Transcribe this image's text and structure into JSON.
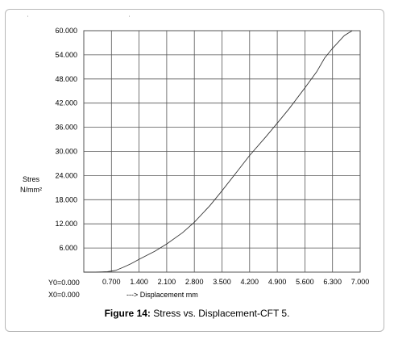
{
  "chart_data": {
    "type": "line",
    "ylabel_line1": "Stres",
    "ylabel_line2": "N/mm²",
    "xlabel": "---> Displacement mm",
    "origin_y": "Y0=0.000",
    "origin_x": "X0=0.000",
    "y_ticks": [
      "6.000",
      "12.000",
      "18.000",
      "24.000",
      "30.000",
      "36.000",
      "42.000",
      "48.000",
      "54.000",
      "60.000"
    ],
    "x_ticks": [
      "0.700",
      "1.400",
      "2.100",
      "2.800",
      "3.500",
      "4.200",
      "4.900",
      "5.600",
      "6.300",
      "7.000"
    ],
    "xlim": [
      0,
      7.0
    ],
    "ylim": [
      0,
      60
    ],
    "grid": true,
    "series": [
      {
        "x": [
          0,
          0.3,
          0.6,
          0.8,
          1.0,
          1.2,
          1.4,
          1.8,
          2.1,
          2.5,
          2.8,
          3.2,
          3.5,
          3.9,
          4.2,
          4.6,
          4.9,
          5.2,
          5.6,
          5.9,
          6.1,
          6.3,
          6.6,
          6.8
        ],
        "y": [
          0,
          0,
          0.1,
          0.4,
          1.2,
          2.1,
          3.2,
          5.2,
          7.0,
          9.8,
          12.4,
          16.6,
          20.2,
          25.2,
          29.0,
          33.5,
          37.0,
          40.6,
          45.8,
          49.8,
          53.2,
          55.6,
          58.8,
          60.0
        ]
      }
    ]
  },
  "caption": {
    "bold": "Figure 14:",
    "text": " Stress vs. Displacement-CFT 5."
  }
}
